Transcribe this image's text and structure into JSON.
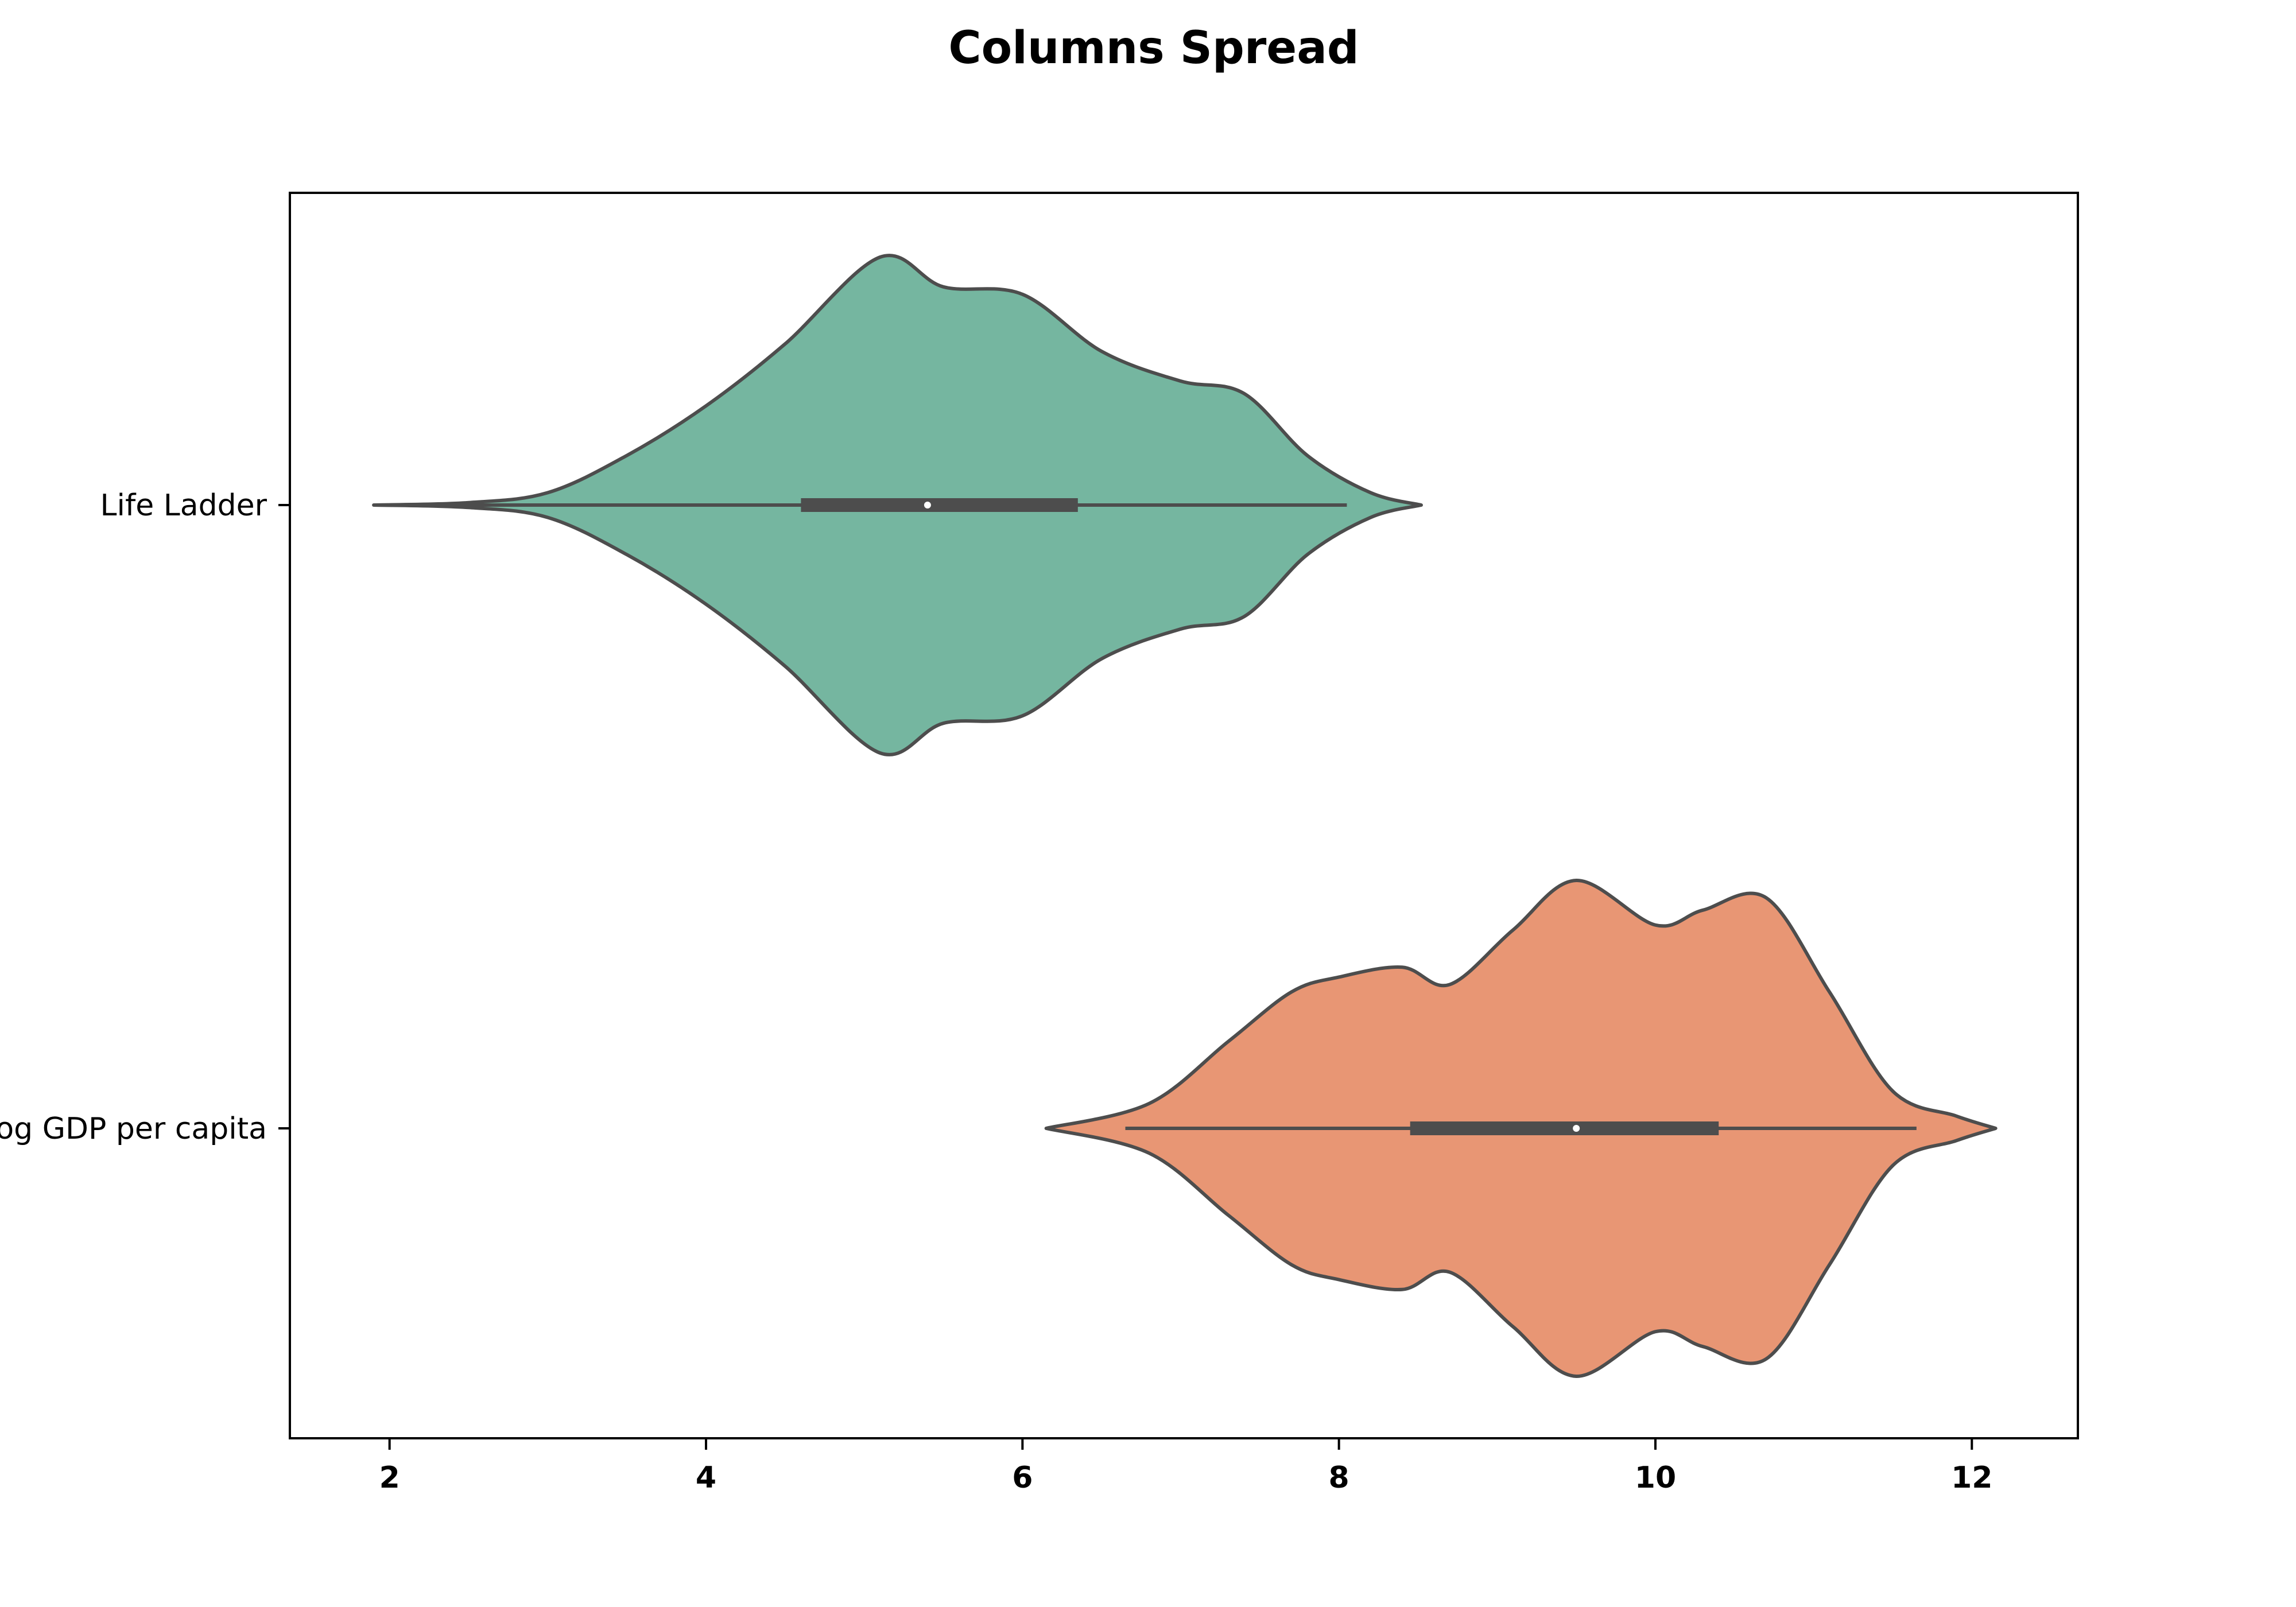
{
  "chart_data": {
    "type": "violin",
    "title": "Columns Spread",
    "xlabel": "",
    "ylabel": "",
    "xlim": [
      1.37,
      12.67
    ],
    "xticks": [
      2,
      4,
      6,
      8,
      10,
      12
    ],
    "xtick_labels": [
      "2",
      "4",
      "6",
      "8",
      "10",
      "12"
    ],
    "categories": [
      "Life Ladder",
      "Log GDP per capita"
    ],
    "grid": false,
    "legend": "none",
    "series": [
      {
        "category": "Life Ladder",
        "color": "#75b6a0",
        "edge_color": "#4d4d4d",
        "whisker_low": 2.0,
        "q1": 4.6,
        "median": 5.4,
        "q3": 6.35,
        "whisker_high": 8.05,
        "density": [
          [
            1.9,
            0.0
          ],
          [
            2.5,
            0.01
          ],
          [
            3.0,
            0.05
          ],
          [
            3.5,
            0.2
          ],
          [
            4.0,
            0.4
          ],
          [
            4.5,
            0.65
          ],
          [
            5.1,
            1.0
          ],
          [
            5.5,
            0.88
          ],
          [
            6.0,
            0.85
          ],
          [
            6.5,
            0.62
          ],
          [
            7.0,
            0.5
          ],
          [
            7.4,
            0.45
          ],
          [
            7.8,
            0.2
          ],
          [
            8.2,
            0.05
          ],
          [
            8.52,
            0.0
          ]
        ]
      },
      {
        "category": "Log GDP per capita",
        "color": "#e89674",
        "edge_color": "#4d4d4d",
        "whisker_low": 6.65,
        "q1": 8.45,
        "median": 9.5,
        "q3": 10.4,
        "whisker_high": 11.65,
        "density": [
          [
            6.15,
            0.0
          ],
          [
            6.8,
            0.1
          ],
          [
            7.3,
            0.35
          ],
          [
            7.7,
            0.55
          ],
          [
            8.0,
            0.61
          ],
          [
            8.4,
            0.65
          ],
          [
            8.7,
            0.58
          ],
          [
            9.1,
            0.8
          ],
          [
            9.5,
            1.0
          ],
          [
            10.0,
            0.82
          ],
          [
            10.3,
            0.88
          ],
          [
            10.7,
            0.93
          ],
          [
            11.1,
            0.55
          ],
          [
            11.5,
            0.15
          ],
          [
            11.9,
            0.05
          ],
          [
            12.15,
            0.0
          ]
        ]
      }
    ]
  }
}
